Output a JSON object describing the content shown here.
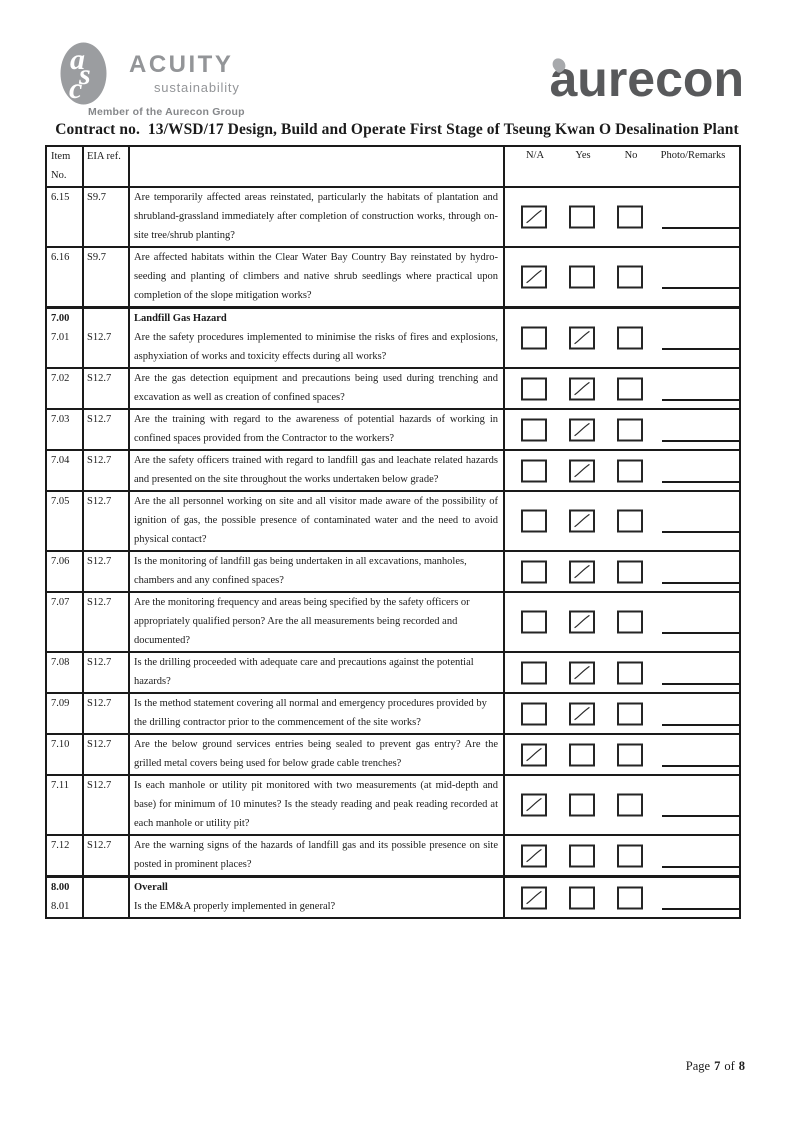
{
  "branding": {
    "acuity": {
      "monogram": [
        "a",
        "s",
        "c"
      ],
      "name": "ACUITY",
      "subtitle": "sustainability",
      "member_line": "Member of the Aurecon Group"
    },
    "aurecon": {
      "wordmark": "aurecon"
    }
  },
  "title": "Contract no.  13/WSD/17 Design, Build and Operate First Stage of Tseung Kwan O Desalination Plant",
  "table": {
    "columns": {
      "item_line1": "Item",
      "item_line2": "No.",
      "eia": "EIA ref.",
      "na": "N/A",
      "yes": "Yes",
      "no": "No",
      "photo": "Photo/Remarks"
    },
    "rows": [
      {
        "item": "6.15",
        "eia": "S9.7",
        "question": "Are temporarily affected areas reinstated, particularly the habitats of plantation and shrubland-grassland immediately after completion of construction works, through on-site tree/shrub planting?",
        "answer": "na"
      },
      {
        "item": "6.16",
        "eia": "S9.7",
        "question": "Are affected habitats within the Clear Water Bay Country Bay reinstated by hydro-seeding and planting of climbers and native shrub seedlings where practical upon completion of the slope mitigation works?",
        "answer": "na"
      },
      {
        "section_item": "7.00",
        "section_title": "Landfill Gas Hazard",
        "item": "7.01",
        "eia": "S12.7",
        "question": "Are the safety procedures implemented to minimise the risks of fires and explosions, asphyxiation of works and toxicity effects during all works?",
        "answer": "yes"
      },
      {
        "item": "7.02",
        "eia": "S12.7",
        "question": "Are the gas detection equipment and precautions being used during trenching and excavation as well as creation of confined spaces?",
        "answer": "yes"
      },
      {
        "item": "7.03",
        "eia": "S12.7",
        "question": "Are the training with regard to the awareness of potential hazards of working in confined spaces provided from the Contractor to the workers?",
        "answer": "yes"
      },
      {
        "item": "7.04",
        "eia": "S12.7",
        "question": "Are the safety officers trained with regard to landfill gas and leachate related hazards and presented on the site throughout the works undertaken below grade?",
        "answer": "yes"
      },
      {
        "item": "7.05",
        "eia": "S12.7",
        "question": "Are the all personnel working on site and all visitor made aware of the possibility of ignition of gas, the possible presence of contaminated water and the need to avoid physical contact?",
        "answer": "yes"
      },
      {
        "item": "7.06",
        "eia": "S12.7",
        "question": "Is the monitoring of landfill gas being undertaken in all excavations, manholes,\nchambers and any confined spaces?",
        "answer": "yes"
      },
      {
        "item": "7.07",
        "eia": "S12.7",
        "question": "Are the monitoring frequency and areas being specified by the safety officers or\nappropriately qualified person? Are the all measurements being recorded and\ndocumented?",
        "answer": "yes"
      },
      {
        "item": "7.08",
        "eia": "S12.7",
        "question": "Is the drilling proceeded with adequate care and precautions against the potential\nhazards?",
        "answer": "yes"
      },
      {
        "item": "7.09",
        "eia": "S12.7",
        "question": "Is the method statement covering all normal and emergency procedures provided by\nthe drilling contractor prior to the commencement of the site works?",
        "answer": "yes"
      },
      {
        "item": "7.10",
        "eia": "S12.7",
        "question": "Are the below ground services entries being sealed to prevent gas entry? Are the grilled metal covers being used for below grade cable trenches?",
        "answer": "na"
      },
      {
        "item": "7.11",
        "eia": "S12.7",
        "question": "Is each manhole or utility pit monitored with two measurements (at mid-depth and base) for minimum of 10 minutes? Is the steady reading and peak reading recorded at each manhole or utility pit?",
        "answer": "na"
      },
      {
        "item": "7.12",
        "eia": "S12.7",
        "question": "Are the warning signs of the hazards of landfill gas and its possible presence on site posted in prominent places?",
        "answer": "na"
      },
      {
        "section_item": "8.00",
        "section_title": "Overall",
        "item": "8.01",
        "eia": "",
        "question": "Is the EM&A properly implemented in general?",
        "answer": "na"
      }
    ]
  },
  "footer": {
    "prefix": "Page",
    "page_number": "7",
    "of_word": "of",
    "page_total": "8"
  }
}
